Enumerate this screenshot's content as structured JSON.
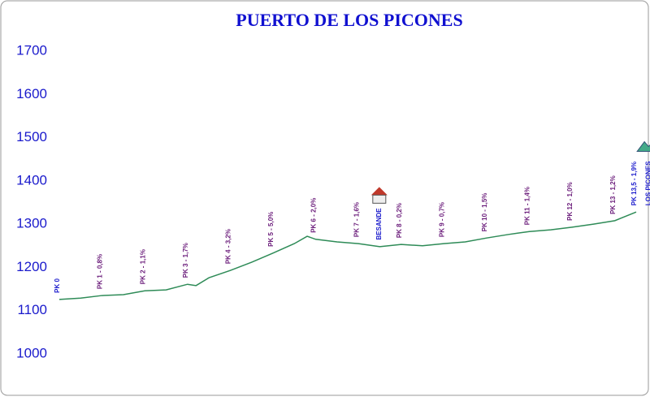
{
  "chart_data": {
    "type": "line",
    "title": "PUERTO DE LOS PICONES",
    "x": [
      0,
      0.5,
      1,
      1.5,
      2,
      2.5,
      3,
      3.2,
      3.5,
      4,
      4.5,
      5,
      5.5,
      5.8,
      6,
      6.5,
      7,
      7.5,
      8,
      8.5,
      9,
      9.5,
      10,
      10.5,
      11,
      11.5,
      12,
      12.5,
      13,
      13.5
    ],
    "series": [
      {
        "color": "#2e8b57",
        "values": [
          1126,
          1129,
          1135,
          1137,
          1146,
          1148,
          1161,
          1158,
          1176,
          1193,
          1212,
          1233,
          1255,
          1272,
          1265,
          1259,
          1255,
          1248,
          1253,
          1250,
          1255,
          1259,
          1268,
          1276,
          1283,
          1287,
          1293,
          1300,
          1308,
          1328
        ]
      }
    ],
    "xlim": [
      0,
      13.5
    ],
    "ylim": [
      1000,
      1700
    ],
    "yticks": [
      1000,
      1100,
      1200,
      1300,
      1400,
      1500,
      1600,
      1700
    ],
    "markers": [
      {
        "x": 0,
        "label": "PK 0",
        "color": "#1a1acc"
      },
      {
        "x": 1,
        "label": "PK 1 - 0,8%",
        "color": "#6a1b7a"
      },
      {
        "x": 2,
        "label": "PK 2 - 1,1%",
        "color": "#6a1b7a"
      },
      {
        "x": 3,
        "label": "PK 3 - 1,7%",
        "color": "#6a1b7a"
      },
      {
        "x": 4,
        "label": "PK 4 - 3,2%",
        "color": "#6a1b7a"
      },
      {
        "x": 5,
        "label": "PK 5 - 5,0%",
        "color": "#6a1b7a"
      },
      {
        "x": 6,
        "label": "PK 6 - 2,0%",
        "color": "#6a1b7a"
      },
      {
        "x": 7,
        "label": "PK 7 - 1,6%",
        "color": "#6a1b7a"
      },
      {
        "x": 8,
        "label": "PK 8 - 0,2%",
        "color": "#6a1b7a"
      },
      {
        "x": 9,
        "label": "PK 9 - 0,7%",
        "color": "#6a1b7a"
      },
      {
        "x": 10,
        "label": "PK 10 - 1,5%",
        "color": "#6a1b7a"
      },
      {
        "x": 11,
        "label": "PK 11 - 1,4%",
        "color": "#6a1b7a"
      },
      {
        "x": 12,
        "label": "PK 12 - 1,0%",
        "color": "#6a1b7a"
      },
      {
        "x": 13,
        "label": "PK 13 - 1,2%",
        "color": "#6a1b7a"
      },
      {
        "x": 13.5,
        "label": "PK 13,5 - 1,9%",
        "color": "#1a1acc"
      }
    ],
    "places": [
      {
        "x": 7.45,
        "label": "BESANDE",
        "color": "#1a1acc"
      },
      {
        "x": 13.75,
        "label": "LOS PICONES",
        "color": "#1a1acc"
      }
    ]
  }
}
